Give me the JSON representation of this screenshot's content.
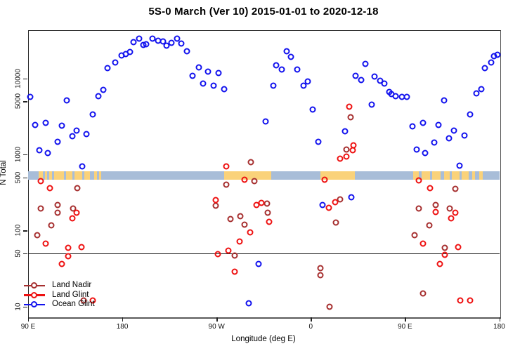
{
  "title": "5S-0 March (Ver 10)   2015-01-01 to 2020-12-18",
  "colors": {
    "land_nadir": "#A62F2F",
    "land_glint": "#EE1111",
    "ocean_glint": "#1212EE",
    "map_ocean": "#A8BDD8",
    "map_land": "#FAD27A",
    "axis": "#222222"
  },
  "legend": {
    "items": [
      {
        "label": "Land Nadir",
        "color": "#A62F2F"
      },
      {
        "label": "Land Glint",
        "color": "#EE1111"
      },
      {
        "label": "Ocean Glint",
        "color": "#1212EE"
      }
    ]
  },
  "chart_data": {
    "type": "scatter",
    "title": "5S-0 March (Ver 10)   2015-01-01 to 2020-12-18",
    "xlabel": "Longitude (deg E)",
    "ylabel": "N Total",
    "y_scale": "log",
    "y_ticks": [
      10,
      50,
      100,
      500,
      1000,
      5000,
      10000
    ],
    "x_axis_note": "axis spans 450 deg eastward from 90E, wrapping 90E-180-90W-0-90E-180; x values below are degrees east of the left edge (90E)",
    "x_ticks": [
      {
        "pos": 0,
        "label": "90 E"
      },
      {
        "pos": 90,
        "label": "180"
      },
      {
        "pos": 180,
        "label": "90 W"
      },
      {
        "pos": 270,
        "label": "0"
      },
      {
        "pos": 360,
        "label": "90 E"
      },
      {
        "pos": 450,
        "label": "180"
      }
    ],
    "reference_line_n": 50,
    "map_strip": {
      "n_range": [
        470,
        600
      ],
      "ocean_color": "#A8BDD8",
      "land_color": "#FAD27A",
      "land_segments_deg": [
        [
          10,
          14
        ],
        [
          16,
          18
        ],
        [
          20,
          23
        ],
        [
          25,
          34
        ],
        [
          36,
          42
        ],
        [
          44,
          52
        ],
        [
          54,
          59
        ],
        [
          63,
          66
        ],
        [
          68,
          70
        ],
        [
          187,
          232
        ],
        [
          279,
          312
        ],
        [
          368,
          373
        ],
        [
          376,
          384
        ],
        [
          386,
          394
        ],
        [
          397,
          403
        ],
        [
          405,
          412
        ],
        [
          414,
          421
        ],
        [
          424,
          427
        ],
        [
          431,
          434
        ]
      ]
    },
    "series": [
      {
        "name": "Land Nadir",
        "color": "#A62F2F",
        "points": [
          [
            213,
            794
          ],
          [
            47,
            361
          ],
          [
            12,
            195
          ],
          [
            28,
            217
          ],
          [
            28,
            171
          ],
          [
            43,
            195
          ],
          [
            22,
            117
          ],
          [
            9,
            87
          ],
          [
            53,
            12
          ],
          [
            189,
            402
          ],
          [
            216,
            447
          ],
          [
            179,
            212
          ],
          [
            193,
            142
          ],
          [
            203,
            154
          ],
          [
            207,
            119
          ],
          [
            197,
            47
          ],
          [
            228,
            226
          ],
          [
            229,
            171
          ],
          [
            298,
            257
          ],
          [
            294,
            127
          ],
          [
            279,
            32
          ],
          [
            279,
            26
          ],
          [
            288,
            10
          ],
          [
            308,
            3090
          ],
          [
            304,
            1165
          ],
          [
            408,
            353
          ],
          [
            373,
            195
          ],
          [
            389,
            217
          ],
          [
            403,
            195
          ],
          [
            383,
            117
          ],
          [
            369,
            87
          ],
          [
            398,
            59
          ],
          [
            377,
            15
          ]
        ]
      },
      {
        "name": "Land Glint",
        "color": "#EE1111",
        "points": [
          [
            189,
            700
          ],
          [
            207,
            466
          ],
          [
            12,
            447
          ],
          [
            21,
            361
          ],
          [
            46,
            171
          ],
          [
            42,
            145
          ],
          [
            17,
            67
          ],
          [
            38,
            59
          ],
          [
            51,
            61
          ],
          [
            38,
            46
          ],
          [
            32,
            36
          ],
          [
            62,
            12
          ],
          [
            179,
            252
          ],
          [
            218,
            217
          ],
          [
            223,
            231
          ],
          [
            230,
            130
          ],
          [
            212,
            95
          ],
          [
            202,
            72
          ],
          [
            181,
            49
          ],
          [
            191,
            54
          ],
          [
            197,
            29
          ],
          [
            283,
            466
          ],
          [
            287,
            199
          ],
          [
            293,
            236
          ],
          [
            307,
            4255
          ],
          [
            311,
            1320
          ],
          [
            310,
            1140
          ],
          [
            298,
            881
          ],
          [
            304,
            940
          ],
          [
            373,
            456
          ],
          [
            384,
            361
          ],
          [
            389,
            175
          ],
          [
            408,
            171
          ],
          [
            404,
            145
          ],
          [
            377,
            67
          ],
          [
            411,
            61
          ],
          [
            398,
            48
          ],
          [
            393,
            36
          ],
          [
            413,
            12
          ],
          [
            422,
            12
          ]
        ]
      },
      {
        "name": "Ocean Glint",
        "color": "#1212EE",
        "points": [
          [
            2,
            5730
          ],
          [
            37,
            5150
          ],
          [
            76,
            13700
          ],
          [
            67,
            5850
          ],
          [
            72,
            7080
          ],
          [
            62,
            3365
          ],
          [
            7,
            2450
          ],
          [
            17,
            2610
          ],
          [
            32,
            2395
          ],
          [
            46,
            2065
          ],
          [
            42,
            1740
          ],
          [
            56,
            1855
          ],
          [
            28,
            1470
          ],
          [
            11,
            1140
          ],
          [
            19,
            1045
          ],
          [
            52,
            700
          ],
          [
            101,
            30000
          ],
          [
            106,
            33400
          ],
          [
            110,
            27600
          ],
          [
            83,
            16250
          ],
          [
            89,
            20100
          ],
          [
            93,
            20900
          ],
          [
            97,
            22300
          ],
          [
            113,
            28200
          ],
          [
            119,
            33400
          ],
          [
            124,
            31400
          ],
          [
            129,
            30700
          ],
          [
            132,
            27000
          ],
          [
            137,
            29400
          ],
          [
            142,
            33400
          ],
          [
            146,
            28800
          ],
          [
            152,
            22800
          ],
          [
            163,
            14000
          ],
          [
            157,
            10800
          ],
          [
            172,
            12300
          ],
          [
            182,
            11800
          ],
          [
            167,
            8570
          ],
          [
            177,
            8050
          ],
          [
            187,
            7230
          ],
          [
            227,
            2720
          ],
          [
            247,
            22800
          ],
          [
            251,
            19250
          ],
          [
            237,
            14900
          ],
          [
            242,
            13100
          ],
          [
            257,
            13100
          ],
          [
            234,
            8050
          ],
          [
            263,
            8050
          ],
          [
            267,
            9140
          ],
          [
            322,
            15560
          ],
          [
            313,
            10800
          ],
          [
            318,
            9530
          ],
          [
            331,
            10600
          ],
          [
            336,
            9330
          ],
          [
            340,
            8570
          ],
          [
            345,
            6640
          ],
          [
            328,
            4530
          ],
          [
            272,
            3900
          ],
          [
            303,
            2020
          ],
          [
            277,
            1470
          ],
          [
            347,
            6230
          ],
          [
            351,
            5850
          ],
          [
            357,
            5730
          ],
          [
            362,
            5730
          ],
          [
            397,
            5150
          ],
          [
            433,
            7230
          ],
          [
            428,
            6370
          ],
          [
            436,
            13700
          ],
          [
            442,
            16250
          ],
          [
            445,
            19700
          ],
          [
            448,
            20500
          ],
          [
            422,
            3365
          ],
          [
            367,
            2345
          ],
          [
            377,
            2610
          ],
          [
            392,
            2450
          ],
          [
            407,
            2065
          ],
          [
            417,
            1780
          ],
          [
            402,
            1635
          ],
          [
            388,
            1440
          ],
          [
            371,
            1165
          ],
          [
            379,
            1045
          ],
          [
            412,
            713
          ],
          [
            309,
            274
          ],
          [
            281,
            217
          ],
          [
            220,
            36
          ],
          [
            211,
            11
          ]
        ]
      }
    ]
  }
}
